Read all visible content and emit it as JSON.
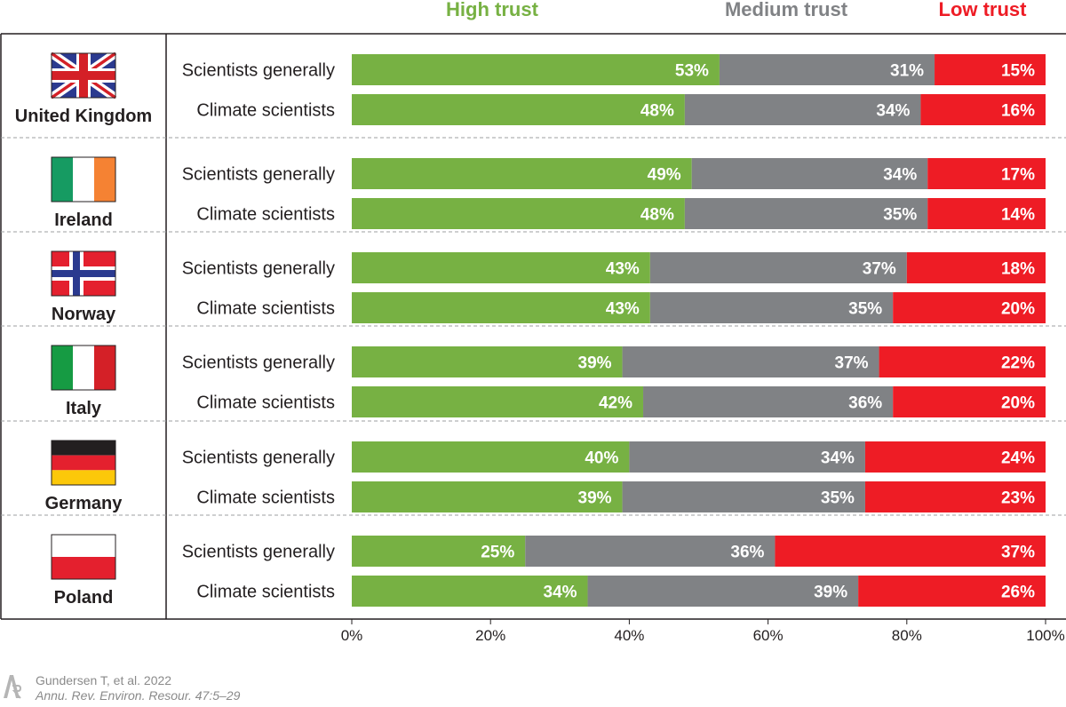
{
  "colors": {
    "high": "#77b143",
    "medium": "#808285",
    "low": "#ee1c25"
  },
  "chart_data": {
    "type": "bar",
    "orientation": "horizontal-stacked",
    "legend": [
      {
        "name": "High trust",
        "color": "#77b143"
      },
      {
        "name": "Medium trust",
        "color": "#808285"
      },
      {
        "name": "Low trust",
        "color": "#ee1c25"
      }
    ],
    "xlim": [
      0,
      100
    ],
    "x_ticks": [
      "0%",
      "20%",
      "40%",
      "60%",
      "80%",
      "100%"
    ],
    "groups": [
      {
        "country": "United Kingdom",
        "flag_icon": "uk-flag-icon",
        "rows": [
          {
            "category": "Scientists generally",
            "values": [
              53,
              31,
              15
            ],
            "labels": [
              "53%",
              "31%",
              "15%"
            ]
          },
          {
            "category": "Climate scientists",
            "values": [
              48,
              34,
              16
            ],
            "labels": [
              "48%",
              "34%",
              "16%"
            ]
          }
        ]
      },
      {
        "country": "Ireland",
        "flag_icon": "ireland-flag-icon",
        "rows": [
          {
            "category": "Scientists generally",
            "values": [
              49,
              34,
              17
            ],
            "labels": [
              "49%",
              "34%",
              "17%"
            ]
          },
          {
            "category": "Climate scientists",
            "values": [
              48,
              35,
              14
            ],
            "labels": [
              "48%",
              "35%",
              "14%"
            ]
          }
        ]
      },
      {
        "country": "Norway",
        "flag_icon": "norway-flag-icon",
        "rows": [
          {
            "category": "Scientists generally",
            "values": [
              43,
              37,
              18
            ],
            "labels": [
              "43%",
              "37%",
              "18%"
            ]
          },
          {
            "category": "Climate scientists",
            "values": [
              43,
              35,
              20
            ],
            "labels": [
              "43%",
              "35%",
              "20%"
            ]
          }
        ]
      },
      {
        "country": "Italy",
        "flag_icon": "italy-flag-icon",
        "rows": [
          {
            "category": "Scientists generally",
            "values": [
              39,
              37,
              22
            ],
            "labels": [
              "39%",
              "37%",
              "22%"
            ]
          },
          {
            "category": "Climate scientists",
            "values": [
              42,
              36,
              20
            ],
            "labels": [
              "42%",
              "36%",
              "20%"
            ]
          }
        ]
      },
      {
        "country": "Germany",
        "flag_icon": "germany-flag-icon",
        "rows": [
          {
            "category": "Scientists generally",
            "values": [
              40,
              34,
              24
            ],
            "labels": [
              "40%",
              "34%",
              "24%"
            ]
          },
          {
            "category": "Climate scientists",
            "values": [
              39,
              35,
              23
            ],
            "labels": [
              "39%",
              "35%",
              "23%"
            ]
          }
        ]
      },
      {
        "country": "Poland",
        "flag_icon": "poland-flag-icon",
        "rows": [
          {
            "category": "Scientists generally",
            "values": [
              25,
              36,
              37
            ],
            "labels": [
              "25%",
              "36%",
              "37%"
            ]
          },
          {
            "category": "Climate scientists",
            "values": [
              34,
              39,
              26
            ],
            "labels": [
              "34%",
              "39%",
              "26%"
            ]
          }
        ]
      }
    ]
  },
  "footer": {
    "citation": "Gundersen T, et al. 2022",
    "journal": "Annu. Rev. Environ. Resour. 47:5–29",
    "logo_icon": "annual-reviews-logo-icon"
  }
}
